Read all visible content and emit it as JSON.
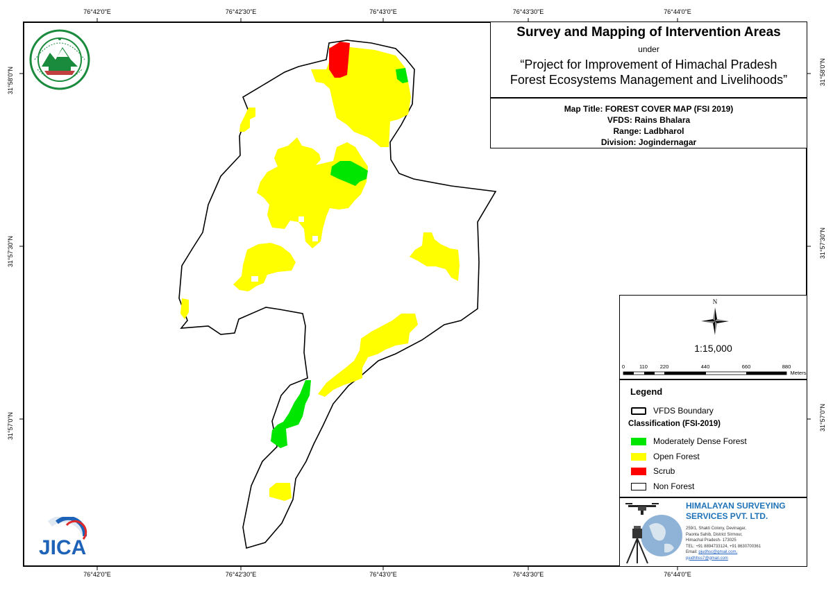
{
  "title": {
    "main": "Survey and Mapping of Intervention Areas",
    "under": "under",
    "project_line1": "“Project for Improvement of Himachal Pradesh",
    "project_line2": "Forest Ecosystems Management and Livelihoods”"
  },
  "map_meta": {
    "map_title": "Map Title: FOREST COVER MAP (FSI 2019)",
    "vfds": "VFDS: Rains Bhalara",
    "range": "Range: Ladbharol",
    "division": "Division: Jogindernagar"
  },
  "graticule": {
    "longitudes": [
      "76°42'0\"E",
      "76°42'30\"E",
      "76°43'0\"E",
      "76°43'30\"E",
      "76°44'0\"E"
    ],
    "latitudes": [
      "31°58'0\"N",
      "31°57'30\"N",
      "31°57'0\"N"
    ]
  },
  "north_arrow": {
    "label": "N"
  },
  "scale": {
    "ratio": "1:15,000",
    "ticks": [
      "0",
      "110",
      "220",
      "440",
      "660",
      "880"
    ],
    "unit": "Meters"
  },
  "legend": {
    "title": "Legend",
    "boundary_label": "VFDS Boundary",
    "classification_title": "Classification (FSI-2019)",
    "items": [
      {
        "label": "Moderately Dense Forest",
        "color": "#00e600"
      },
      {
        "label": "Open Forest",
        "color": "#ffff00"
      },
      {
        "label": "Scrub",
        "color": "#ff0000"
      },
      {
        "label": "Non Forest",
        "color": "#ffffff"
      }
    ]
  },
  "company": {
    "name_line1": "HIMALAYAN SURVEYING",
    "name_line2": "SERVICES PVT. LTD.",
    "addr1": "259/1, Shakti Colony, Devinagar,",
    "addr2": "Paonta Sahib, District Sirmour,",
    "addr3": "Himachal Pradesh- 173025",
    "tel": "TEL: +91 8894733124, +91 8630700361",
    "email_label": "Email:",
    "email1": "pjudhsc@gmail.com,",
    "email2": "pjudhhss7@gmail.com"
  },
  "logos": {
    "jica_text": "JICA"
  },
  "colors": {
    "mdf": "#00e600",
    "open": "#ffff00",
    "scrub": "#ff0000",
    "company": "#1e73b8"
  }
}
